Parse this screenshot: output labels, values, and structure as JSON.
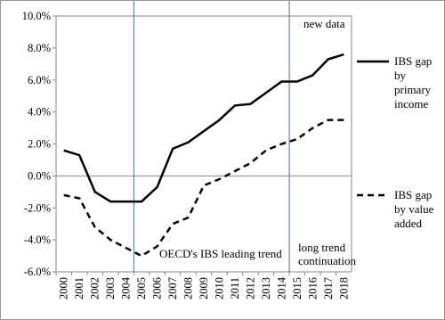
{
  "chart_data": {
    "type": "line",
    "categories": [
      "2000",
      "2001",
      "2002",
      "2003",
      "2004",
      "2005",
      "2006",
      "2007",
      "2008",
      "2009",
      "2010",
      "2011",
      "2012",
      "2013",
      "2014",
      "2015",
      "2016",
      "2017",
      "2018"
    ],
    "series": [
      {
        "name": "IBS gap by primary income",
        "color": "#000000",
        "dash": "solid",
        "values": [
          1.6,
          1.3,
          -1.0,
          -1.6,
          -1.6,
          -1.6,
          -0.7,
          1.7,
          2.1,
          2.8,
          3.5,
          4.4,
          4.5,
          5.2,
          5.9,
          5.9,
          6.3,
          7.3,
          7.6
        ]
      },
      {
        "name": "IBS gap by value added",
        "color": "#000000",
        "dash": "dashed",
        "values": [
          -1.2,
          -1.4,
          -3.2,
          -4.0,
          -4.5,
          -5.0,
          -4.4,
          -3.0,
          -2.6,
          -0.6,
          -0.2,
          0.3,
          0.8,
          1.6,
          2.0,
          2.3,
          3.0,
          3.5,
          3.5
        ]
      }
    ],
    "ylim": [
      -6,
      10
    ],
    "yticks": [
      {
        "value": -6,
        "label": "-6.0%"
      },
      {
        "value": -4,
        "label": "-4.0%"
      },
      {
        "value": -2,
        "label": "-2.0%"
      },
      {
        "value": 0,
        "label": "0.0%"
      },
      {
        "value": 2,
        "label": "2.0%"
      },
      {
        "value": 4,
        "label": "4.0%"
      },
      {
        "value": 6,
        "label": "6.0%"
      },
      {
        "value": 8,
        "label": "8.0%"
      },
      {
        "value": 10,
        "label": "10.0%"
      }
    ],
    "annotations": [
      "new data",
      "OECD's IBS leading trend",
      "long trend continuation"
    ]
  }
}
